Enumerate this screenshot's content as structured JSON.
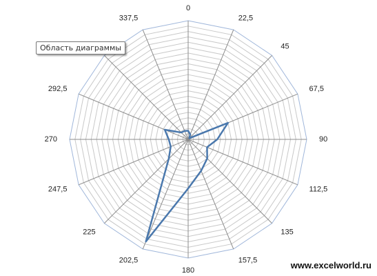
{
  "chart_data": {
    "type": "radar",
    "categories": [
      "0",
      "22,5",
      "45",
      "67,5",
      "90",
      "112,5",
      "135",
      "157,5",
      "180",
      "202,5",
      "225",
      "247,5",
      "270",
      "292,5",
      null,
      "337,5"
    ],
    "series": [
      {
        "color": "#4a78ad",
        "values": [
          1.6,
          1,
          0.3,
          8,
          5.4,
          3.8,
          5,
          6.3,
          9.1,
          20.5,
          5.1,
          3.5,
          3.6,
          4.7,
          1.8,
          1.7
        ]
      }
    ],
    "ylim": [
      0,
      22
    ],
    "yticks": [
      1,
      2,
      3,
      4,
      5,
      6,
      7,
      8,
      9,
      10,
      11,
      12,
      13,
      14,
      15,
      16,
      17,
      18,
      19,
      20,
      21,
      22
    ],
    "grid": true
  },
  "tooltip": "Область диаграммы",
  "watermark": "www.excelworld.ru"
}
